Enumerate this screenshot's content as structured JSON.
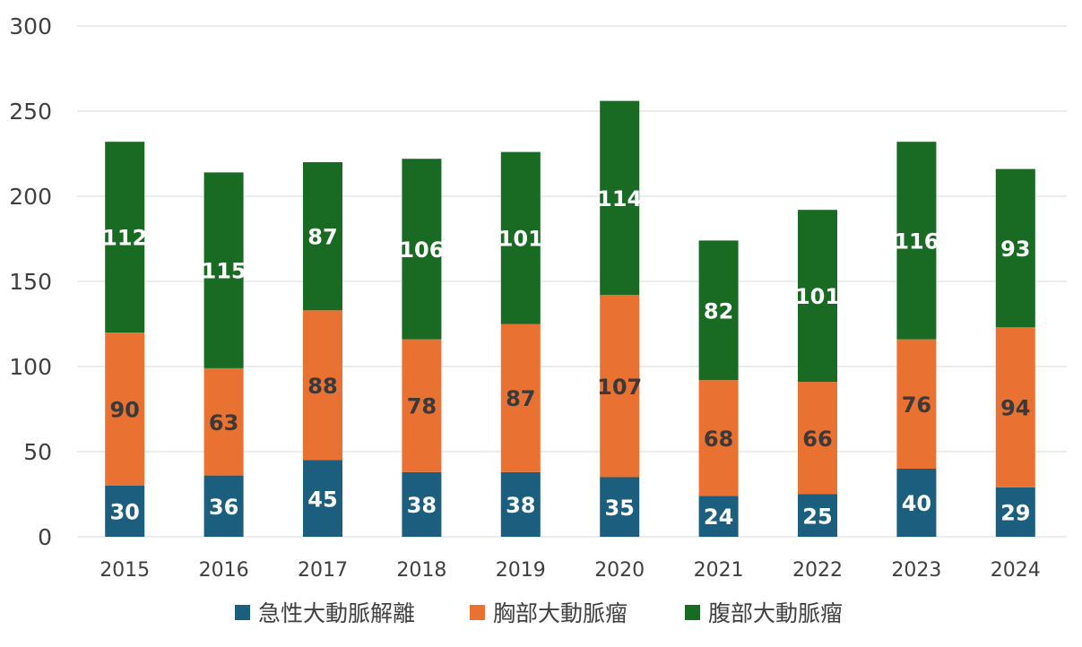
{
  "chart_data": {
    "type": "bar",
    "stacked": true,
    "categories": [
      "2015",
      "2016",
      "2017",
      "2018",
      "2019",
      "2020",
      "2021",
      "2022",
      "2023",
      "2024"
    ],
    "series": [
      {
        "name": "急性大動脈解離",
        "color": "#1b5e7e",
        "label_color": "#ffffff",
        "values": [
          30,
          36,
          45,
          38,
          38,
          35,
          24,
          25,
          40,
          29
        ]
      },
      {
        "name": "胸部大動脈瘤",
        "color": "#e97132",
        "label_color": "#3a3a3a",
        "values": [
          90,
          63,
          88,
          78,
          87,
          107,
          68,
          66,
          76,
          94
        ]
      },
      {
        "name": "腹部大動脈瘤",
        "color": "#196b24",
        "label_color": "#ffffff",
        "values": [
          112,
          115,
          87,
          106,
          101,
          114,
          82,
          101,
          116,
          93
        ]
      }
    ],
    "ylim": [
      0,
      300
    ],
    "yticks": [
      0,
      50,
      100,
      150,
      200,
      250,
      300
    ],
    "grid": true,
    "gridline_color": "#d9d9d9",
    "legend_position": "bottom",
    "title": "",
    "xlabel": "",
    "ylabel": ""
  }
}
